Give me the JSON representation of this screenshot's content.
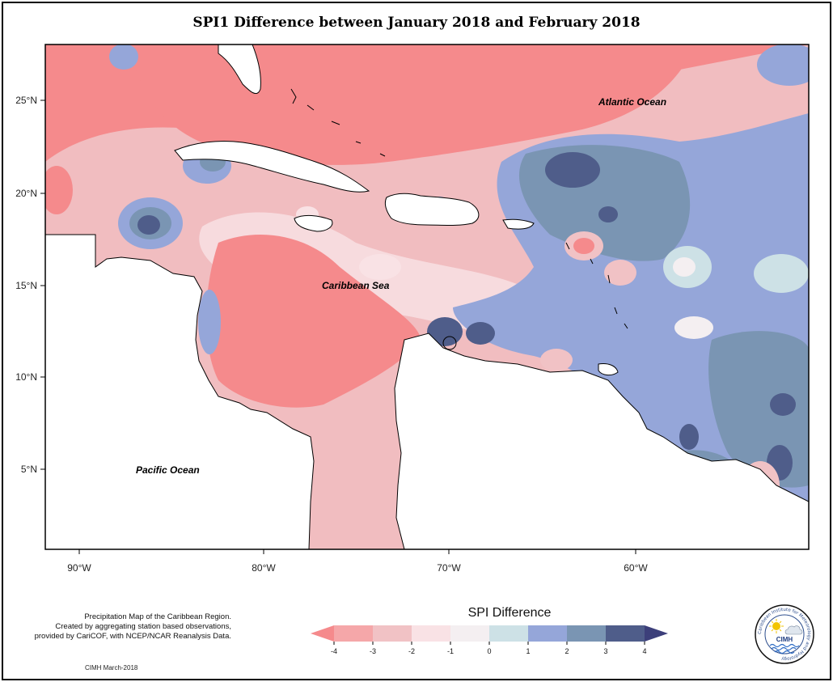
{
  "title": "SPI1 Difference between January 2018 and February 2018",
  "map": {
    "ocean_labels": {
      "atlantic": "Atlantic Ocean",
      "caribbean": "Caribbean Sea",
      "pacific": "Pacific Ocean"
    },
    "lat_ticks": [
      "25°N",
      "20°N",
      "15°N",
      "10°N",
      "5°N"
    ],
    "lon_ticks": [
      "90°W",
      "80°W",
      "70°W",
      "60°W"
    ],
    "colors": {
      "land": "#ffffff",
      "coastline": "#000000",
      "frame": "#000000"
    }
  },
  "legend": {
    "title": "SPI Difference",
    "ticks": [
      "-4",
      "-3",
      "-2",
      "-1",
      "0",
      "1",
      "2",
      "3",
      "4"
    ],
    "colors": [
      "#f58a8c",
      "#f5a7a9",
      "#f1c2c5",
      "#f9e2e5",
      "#f4eff1",
      "#cde1e6",
      "#95a6d9",
      "#7a95b3",
      "#4f5d8a",
      "#3c3f7a"
    ]
  },
  "caption": {
    "line1": "Precipitation Map of the Caribbean Region.",
    "line2": "Created by aggregating station based observations,",
    "line3": "provided by CariCOF, with NCEP/NCAR Reanalysis Data."
  },
  "credit": "CIMH March-2018",
  "logo": {
    "ring_text": "Caribbean Institute for Meteorology and Hydrology",
    "acronym": "CIMH",
    "icons": [
      "sun-icon",
      "cloud-icon",
      "water-waves-icon"
    ]
  }
}
